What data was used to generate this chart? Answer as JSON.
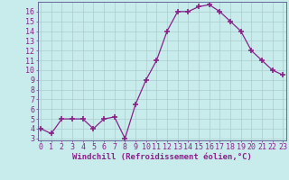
{
  "x": [
    0,
    1,
    2,
    3,
    4,
    5,
    6,
    7,
    8,
    9,
    10,
    11,
    12,
    13,
    14,
    15,
    16,
    17,
    18,
    19,
    20,
    21,
    22,
    23
  ],
  "y": [
    4.0,
    3.5,
    5.0,
    5.0,
    5.0,
    4.0,
    5.0,
    5.2,
    3.0,
    6.5,
    9.0,
    11.0,
    14.0,
    16.0,
    16.0,
    16.5,
    16.7,
    16.0,
    15.0,
    14.0,
    12.0,
    11.0,
    10.0,
    9.5
  ],
  "line_color": "#882288",
  "marker": "+",
  "marker_size": 4,
  "marker_lw": 1.2,
  "linewidth": 0.9,
  "background_color": "#c8ecec",
  "grid_color": "#aacccc",
  "yticks": [
    3,
    4,
    5,
    6,
    7,
    8,
    9,
    10,
    11,
    12,
    13,
    14,
    15,
    16
  ],
  "ylim": [
    2.8,
    17.0
  ],
  "xlim": [
    -0.3,
    23.3
  ],
  "xlabel": "Windchill (Refroidissement éolien,°C)",
  "xlabel_fontsize": 6.5,
  "tick_fontsize": 6.0,
  "axis_color": "#882288",
  "spine_color": "#666699"
}
